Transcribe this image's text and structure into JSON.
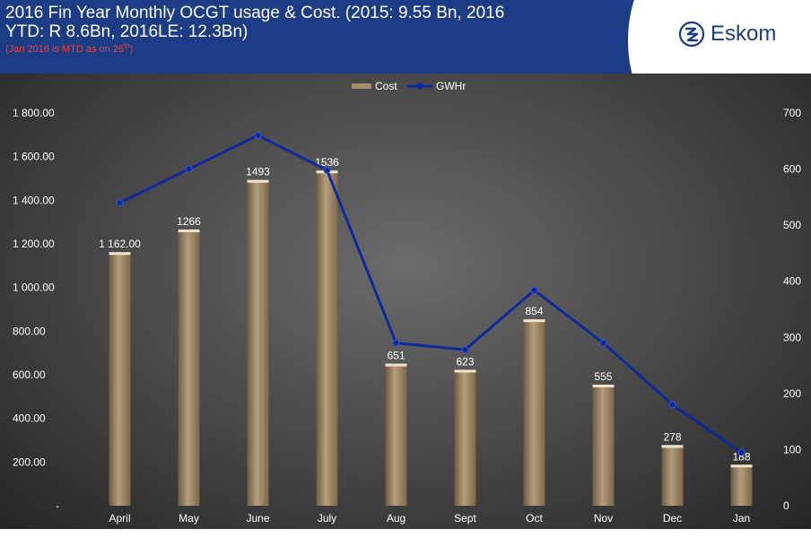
{
  "header": {
    "title_line1": "2016 Fin Year Monthly OCGT usage & Cost. (2015: 9.55 Bn, 2016",
    "title_line2": "YTD: R 8.6Bn, 2016LE: 12.3Bn)",
    "subtitle_main": "(Jan 2016 is MTD as on 26",
    "subtitle_sup": "th",
    "subtitle_end": ")",
    "logo_text": "Eskom",
    "logo_icon": "eskom-logo-icon"
  },
  "chart_data": {
    "type": "bar",
    "categories": [
      "April",
      "May",
      "June",
      "July",
      "Aug",
      "Sept",
      "Oct",
      "Nov",
      "Dec",
      "Jan"
    ],
    "series": [
      {
        "name": "Cost",
        "type": "bar",
        "axis": "left",
        "values": [
          1162,
          1266,
          1493,
          1536,
          651,
          623,
          854,
          555,
          278,
          188
        ],
        "data_labels": [
          "1 162.00",
          "1266",
          "1493",
          "1536",
          "651",
          "623",
          "854",
          "555",
          "278",
          "188"
        ]
      },
      {
        "name": "GWHr",
        "type": "line",
        "axis": "right",
        "values": [
          540,
          600,
          660,
          598,
          290,
          278,
          384,
          290,
          180,
          95
        ]
      }
    ],
    "y_left": {
      "range": [
        0,
        1800
      ],
      "ticks": [
        0,
        200,
        400,
        600,
        800,
        1000,
        1200,
        1400,
        1600,
        1800
      ],
      "tick_labels": [
        "-",
        "200.00",
        "400.00",
        "600.00",
        "800.00",
        "1 000.00",
        "1 200.00",
        "1 400.00",
        "1 600.00",
        "1 800.00"
      ]
    },
    "y_right": {
      "range": [
        0,
        700
      ],
      "ticks": [
        0,
        100,
        200,
        300,
        400,
        500,
        600,
        700
      ],
      "tick_labels": [
        "0",
        "100",
        "200",
        "300",
        "400",
        "500",
        "600",
        "700"
      ]
    },
    "legend_position": "top-center",
    "grid": false,
    "colors": {
      "bar": "#a58c6c",
      "bar_top": "#f2e4cc",
      "line": "#0d2a9c",
      "axis_text": "#ffffff",
      "background": "#4a4a4a"
    }
  }
}
